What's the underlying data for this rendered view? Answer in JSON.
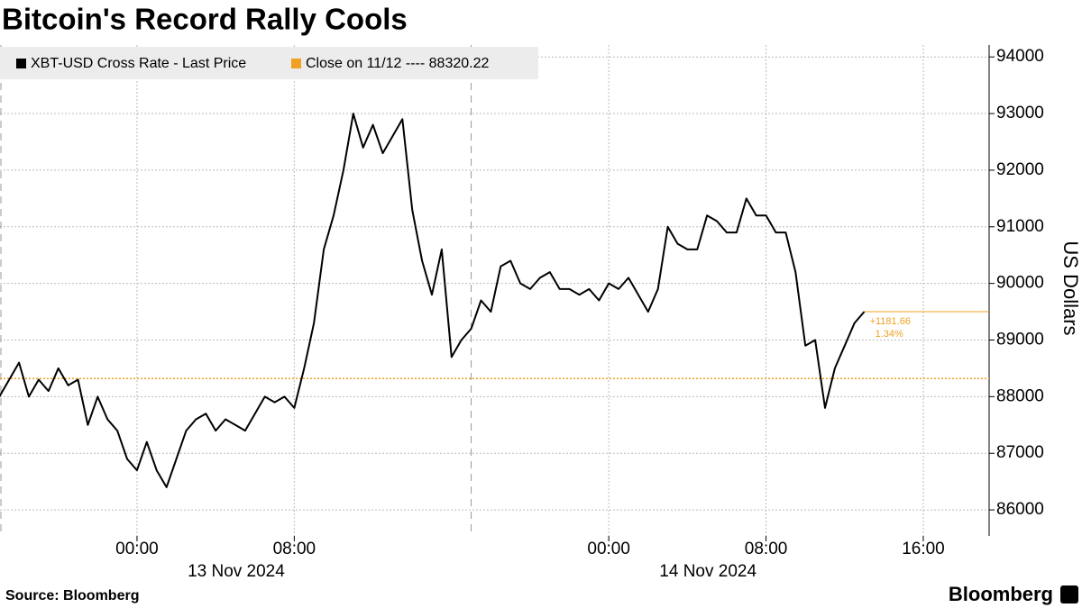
{
  "chart_data": {
    "type": "line",
    "title": "Bitcoin's Record Rally Cools",
    "source": "Source: Bloomberg",
    "brand": "Bloomberg",
    "y_label": "US Dollars",
    "x": [
      -7,
      -6.5,
      -6,
      -5.5,
      -5,
      -4.5,
      -4,
      -3.5,
      -3,
      -2.5,
      -2,
      -1.5,
      -1,
      -0.5,
      0,
      0.5,
      1,
      1.5,
      2,
      2.5,
      3,
      3.5,
      4,
      4.5,
      5,
      5.5,
      6,
      6.5,
      7,
      7.5,
      8,
      8.5,
      9,
      9.5,
      10,
      10.5,
      11,
      11.5,
      12,
      12.5,
      13,
      13.5,
      14,
      14.5,
      15,
      15.5,
      16,
      16.5,
      17,
      17.5,
      18,
      18.5,
      19,
      19.5,
      20,
      20.5,
      21,
      21.5,
      22,
      22.5,
      23,
      23.5,
      24,
      24.5,
      25,
      25.5,
      26,
      26.5,
      27,
      27.5,
      28,
      28.5,
      29,
      29.5,
      30,
      30.5,
      31,
      31.5,
      32,
      32.5,
      33,
      33.5,
      34,
      34.5,
      35,
      35.5,
      36,
      36.5,
      37
    ],
    "series": [
      {
        "name": "XBT-USD Cross Rate - Last Price",
        "color": "#000000",
        "values": [
          88000,
          88300,
          88600,
          88000,
          88300,
          88100,
          88500,
          88200,
          88300,
          87500,
          88000,
          87600,
          87400,
          86900,
          86700,
          87200,
          86700,
          86400,
          86900,
          87400,
          87600,
          87700,
          87400,
          87600,
          87500,
          87400,
          87700,
          88000,
          87900,
          88000,
          87800,
          88500,
          89300,
          90600,
          91200,
          92000,
          93000,
          92400,
          92800,
          92300,
          92600,
          92900,
          91300,
          90400,
          89800,
          90600,
          88700,
          89000,
          89200,
          89700,
          89500,
          90300,
          90400,
          90000,
          89900,
          90100,
          90200,
          89900,
          89900,
          89800,
          89900,
          89700,
          90000,
          89900,
          90100,
          89800,
          89500,
          89900,
          91000,
          90700,
          90600,
          90600,
          91200,
          91100,
          90900,
          90900,
          91500,
          91200,
          91200,
          90900,
          90900,
          90200,
          88900,
          89000,
          87800,
          88500,
          88900,
          89300,
          89501.88
        ]
      }
    ],
    "reference_line": {
      "name": "Close on 11/12 ---- 88320.22",
      "value": 88320.22,
      "color": "#f0a022"
    },
    "last_change": {
      "value": 1181.66,
      "label": "+1181.66"
    },
    "last_change_pct": {
      "value": 1.34,
      "label": "1.34%"
    },
    "xlim": [
      -6.97,
      43.35
    ],
    "xticks": [
      {
        "value": 0,
        "label": "00:00"
      },
      {
        "value": 8,
        "label": "08:00"
      },
      {
        "value": 24,
        "label": "00:00"
      },
      {
        "value": 32,
        "label": "08:00"
      },
      {
        "value": 40,
        "label": "16:00"
      }
    ],
    "x_dates": [
      "13 Nov 2024",
      "14 Nov 2024"
    ],
    "session_breaks": [
      -7,
      17
    ],
    "ylim": [
      85540,
      94210
    ],
    "yticks": [
      86000,
      87000,
      88000,
      89000,
      90000,
      91000,
      92000,
      93000,
      94000
    ],
    "grid": true
  }
}
